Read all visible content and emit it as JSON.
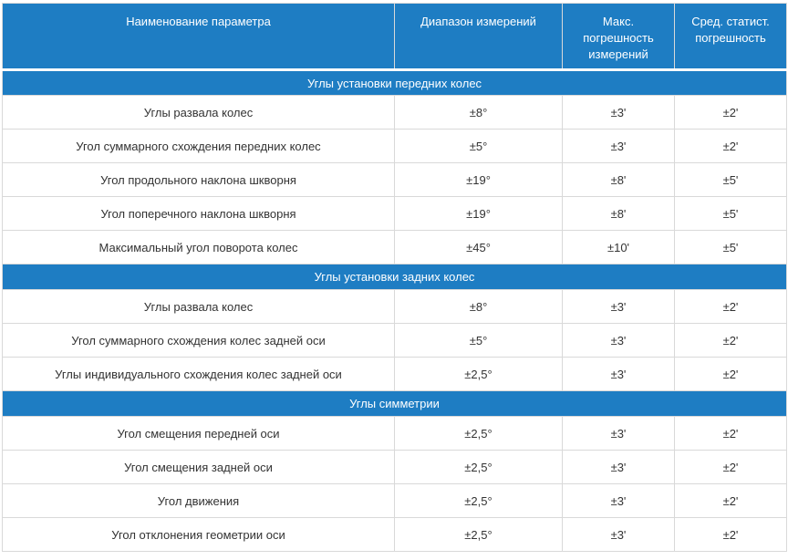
{
  "table": {
    "columns": [
      "Наименование параметра",
      "Диапазон измерений",
      "Макс. погрешность измерений",
      "Сред. статист. погрешность"
    ],
    "sections": [
      {
        "title": "Углы установки передних колес",
        "rows": [
          [
            "Углы развала колес",
            "±8°",
            "±3'",
            "±2'"
          ],
          [
            "Угол суммарного схождения передних колес",
            "±5°",
            "±3'",
            "±2'"
          ],
          [
            "Угол продольного наклона шкворня",
            "±19°",
            "±8'",
            "±5'"
          ],
          [
            "Угол поперечного наклона шкворня",
            "±19°",
            "±8'",
            "±5'"
          ],
          [
            "Максимальный угол поворота колес",
            "±45°",
            "±10'",
            "±5'"
          ]
        ]
      },
      {
        "title": "Углы установки задних колес",
        "rows": [
          [
            "Углы развала колес",
            "±8°",
            "±3'",
            "±2'"
          ],
          [
            "Угол суммарного схождения колес задней оси",
            "±5°",
            "±3'",
            "±2'"
          ],
          [
            "Углы индивидуального схождения колес задней оси",
            "±2,5°",
            "±3'",
            "±2'"
          ]
        ]
      },
      {
        "title": "Углы симметрии",
        "rows": [
          [
            "Угол смещения передней оси",
            "±2,5°",
            "±3'",
            "±2'"
          ],
          [
            "Угол смещения задней оси",
            "±2,5°",
            "±3'",
            "±2'"
          ],
          [
            "Угол движения",
            "±2,5°",
            "±3'",
            "±2'"
          ],
          [
            "Угол отклонения геометрии оси",
            "±2,5°",
            "±3'",
            "±2'"
          ]
        ]
      }
    ],
    "colors": {
      "accent_blue": "#1e7dc3",
      "header_text": "#ffffff",
      "border": "#d9d9d9",
      "row_text": "#333333",
      "row_background": "#ffffff"
    }
  }
}
